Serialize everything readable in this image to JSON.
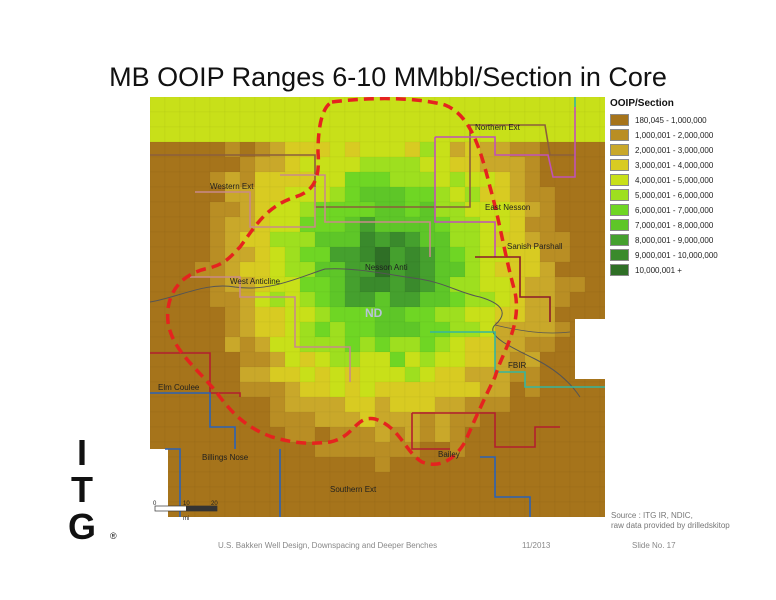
{
  "title": "MB OOIP Ranges 6-10 MMbbl/Section in Core",
  "legend": {
    "title": "OOIP/Section",
    "items": [
      {
        "label": "180,045 - 1,000,000",
        "color": "#a6741b"
      },
      {
        "label": "1,000,001 - 2,000,000",
        "color": "#b98e24"
      },
      {
        "label": "2,000,001 - 3,000,000",
        "color": "#c9a82a"
      },
      {
        "label": "3,000,001 - 4,000,000",
        "color": "#d8cb22"
      },
      {
        "label": "4,000,001 - 5,000,000",
        "color": "#c8e019"
      },
      {
        "label": "5,000,001 - 6,000,000",
        "color": "#9edf1f"
      },
      {
        "label": "6,000,001 - 7,000,000",
        "color": "#6fd624"
      },
      {
        "label": "7,000,001 - 8,000,000",
        "color": "#5ec628"
      },
      {
        "label": "8,000,001 - 9,000,000",
        "color": "#45a02e"
      },
      {
        "label": "9,000,001 - 10,000,000",
        "color": "#3a8a2c"
      },
      {
        "label": "10,000,001 +",
        "color": "#2f6f26"
      }
    ]
  },
  "areas": {
    "northern_ext": "Northern Ext",
    "western_ext": "Western Ext",
    "east_nesson": "East Nesson",
    "nesson_anti": "Nesson Anti",
    "west_anticline": "West Anticline",
    "sanish_parshall": "Sanish Parshall",
    "nd": "ND",
    "fbir": "FBIR",
    "elm_coulee": "Elm Coulee",
    "billings_nose": "Billings Nose",
    "bailey": "Bailey",
    "southern_ext": "Southern Ext"
  },
  "scale": {
    "t0": "0",
    "t1": "10",
    "t2": "20",
    "unit": "mi"
  },
  "source": {
    "line1": "Source : ITG IR, NDIC,",
    "line2": "raw data provided by drilledskitop"
  },
  "footer": {
    "subtitle": "U.S. Bakken Well Design, Downspacing and Deeper Benches",
    "date": "11/2013",
    "slide": "Slide No. 17"
  },
  "logo": {
    "l1": "I",
    "l2": "T",
    "l3": "G",
    "reg": "®"
  }
}
